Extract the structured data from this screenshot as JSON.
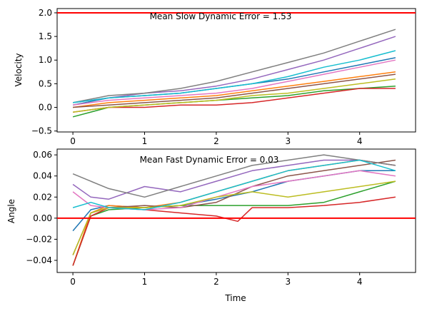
{
  "chart_data": [
    {
      "type": "line",
      "title": "",
      "annotation": "Mean Slow Dynamic Error = 1.53",
      "xlabel": "",
      "ylabel": "Velocity",
      "xlim": [
        -0.22,
        4.78
      ],
      "ylim": [
        -0.52,
        2.09
      ],
      "xticks": [
        0,
        1,
        2,
        3,
        4
      ],
      "xtick_labels": [
        "0",
        "1",
        "2",
        "3",
        "4"
      ],
      "yticks": [
        -0.5,
        0.0,
        0.5,
        1.0,
        1.5,
        2.0
      ],
      "ytick_labels": [
        "−0.5",
        "0.0",
        "0.5",
        "1.0",
        "1.5",
        "2.0"
      ],
      "grid": false,
      "reference_line": {
        "y": 2.0,
        "color": "#ff0000"
      },
      "series": [
        {
          "color": "#1f77b4",
          "x": [
            0,
            0.5,
            1,
            1.5,
            2,
            2.5,
            3,
            3.5,
            4,
            4.5
          ],
          "values": [
            0.05,
            0.2,
            0.25,
            0.3,
            0.4,
            0.5,
            0.6,
            0.75,
            0.9,
            1.05
          ]
        },
        {
          "color": "#ff7f0e",
          "x": [
            0,
            0.5,
            1,
            1.5,
            2,
            2.5,
            3,
            3.5,
            4,
            4.5
          ],
          "values": [
            0.0,
            0.1,
            0.15,
            0.2,
            0.25,
            0.35,
            0.45,
            0.55,
            0.65,
            0.75
          ]
        },
        {
          "color": "#2ca02c",
          "x": [
            0,
            0.5,
            1,
            1.5,
            2,
            2.5,
            3,
            3.5,
            4,
            4.5
          ],
          "values": [
            -0.2,
            0.0,
            0.05,
            0.1,
            0.15,
            0.2,
            0.25,
            0.35,
            0.4,
            0.45
          ]
        },
        {
          "color": "#d62728",
          "x": [
            0,
            0.5,
            1,
            1.5,
            2,
            2.5,
            3,
            3.5,
            4,
            4.5
          ],
          "values": [
            -0.1,
            0.0,
            0.0,
            0.05,
            0.05,
            0.1,
            0.2,
            0.3,
            0.4,
            0.4
          ]
        },
        {
          "color": "#9467bd",
          "x": [
            0,
            0.5,
            1,
            1.5,
            2,
            2.5,
            3,
            3.5,
            4,
            4.5
          ],
          "values": [
            0.1,
            0.2,
            0.3,
            0.35,
            0.45,
            0.6,
            0.8,
            1.0,
            1.25,
            1.5
          ]
        },
        {
          "color": "#8c564b",
          "x": [
            0,
            0.5,
            1,
            1.5,
            2,
            2.5,
            3,
            3.5,
            4,
            4.5
          ],
          "values": [
            0.0,
            0.05,
            0.1,
            0.15,
            0.2,
            0.3,
            0.4,
            0.5,
            0.6,
            0.7
          ]
        },
        {
          "color": "#e377c2",
          "x": [
            0,
            0.5,
            1,
            1.5,
            2,
            2.5,
            3,
            3.5,
            4,
            4.5
          ],
          "values": [
            0.05,
            0.15,
            0.2,
            0.25,
            0.3,
            0.4,
            0.55,
            0.7,
            0.85,
            1.0
          ]
        },
        {
          "color": "#7f7f7f",
          "x": [
            0,
            0.5,
            1,
            1.5,
            2,
            2.5,
            3,
            3.5,
            4,
            4.5
          ],
          "values": [
            0.1,
            0.25,
            0.3,
            0.4,
            0.55,
            0.75,
            0.95,
            1.15,
            1.4,
            1.65
          ]
        },
        {
          "color": "#bcbd22",
          "x": [
            0,
            0.5,
            1,
            1.5,
            2,
            2.5,
            3,
            3.5,
            4,
            4.5
          ],
          "values": [
            -0.1,
            0.0,
            0.05,
            0.1,
            0.15,
            0.25,
            0.3,
            0.4,
            0.5,
            0.6
          ]
        },
        {
          "color": "#17becf",
          "x": [
            0,
            0.5,
            1,
            1.5,
            2,
            2.5,
            3,
            3.5,
            4,
            4.5
          ],
          "values": [
            0.1,
            0.2,
            0.25,
            0.3,
            0.4,
            0.5,
            0.65,
            0.85,
            1.0,
            1.2
          ]
        }
      ]
    },
    {
      "type": "line",
      "title": "",
      "annotation": "Mean Fast Dynamic Error = 0.03",
      "xlabel": "Time",
      "ylabel": "Angle",
      "xlim": [
        -0.22,
        4.78
      ],
      "ylim": [
        -0.0515,
        0.0655
      ],
      "xticks": [
        0,
        1,
        2,
        3,
        4
      ],
      "xtick_labels": [
        "0",
        "1",
        "2",
        "3",
        "4"
      ],
      "yticks": [
        -0.04,
        -0.02,
        0.0,
        0.02,
        0.04,
        0.06
      ],
      "ytick_labels": [
        "−0.04",
        "−0.02",
        "0.00",
        "0.02",
        "0.04",
        "0.06"
      ],
      "grid": false,
      "reference_line": {
        "y": 0.0,
        "color": "#ff0000"
      },
      "series": [
        {
          "color": "#1f77b4",
          "x": [
            0,
            0.25,
            0.5,
            1,
            1.5,
            2,
            2.5,
            3,
            3.5,
            4,
            4.5
          ],
          "values": [
            -0.012,
            0.008,
            0.012,
            0.01,
            0.012,
            0.018,
            0.025,
            0.035,
            0.04,
            0.045,
            0.045
          ]
        },
        {
          "color": "#ff7f0e",
          "x": [
            0,
            0.25,
            0.5,
            1,
            1.5,
            2,
            2.5,
            3,
            3.5,
            4,
            4.5
          ],
          "values": [
            -0.045,
            0.005,
            0.012,
            0.01,
            0.015,
            0.025,
            0.035,
            0.045,
            0.05,
            0.055,
            0.05
          ]
        },
        {
          "color": "#2ca02c",
          "x": [
            0,
            0.25,
            0.5,
            1,
            1.5,
            2,
            2.5,
            3,
            3.5,
            4,
            4.5
          ],
          "values": [
            -0.045,
            0.002,
            0.008,
            0.01,
            0.012,
            0.012,
            0.012,
            0.012,
            0.015,
            0.025,
            0.035
          ]
        },
        {
          "color": "#d62728",
          "x": [
            0,
            0.25,
            0.5,
            1,
            1.5,
            2,
            2.3,
            2.5,
            3,
            3.5,
            4,
            4.5
          ],
          "values": [
            -0.045,
            0.002,
            0.01,
            0.008,
            0.005,
            0.002,
            -0.003,
            0.01,
            0.01,
            0.012,
            0.015,
            0.02
          ]
        },
        {
          "color": "#9467bd",
          "x": [
            0,
            0.25,
            0.5,
            1,
            1.5,
            2,
            2.5,
            3,
            3.5,
            4,
            4.5
          ],
          "values": [
            0.032,
            0.02,
            0.018,
            0.03,
            0.025,
            0.035,
            0.045,
            0.05,
            0.055,
            0.055,
            0.05
          ]
        },
        {
          "color": "#8c564b",
          "x": [
            0,
            0.25,
            0.5,
            1,
            1.5,
            2,
            2.5,
            3,
            3.5,
            4,
            4.5
          ],
          "values": [
            -0.035,
            0.005,
            0.01,
            0.012,
            0.01,
            0.015,
            0.03,
            0.04,
            0.045,
            0.05,
            0.055
          ]
        },
        {
          "color": "#e377c2",
          "x": [
            0,
            0.25,
            0.5,
            1,
            1.5,
            2,
            2.5,
            3,
            3.5,
            4,
            4.5
          ],
          "values": [
            0.025,
            0.012,
            0.01,
            0.008,
            0.01,
            0.02,
            0.03,
            0.035,
            0.04,
            0.045,
            0.04
          ]
        },
        {
          "color": "#7f7f7f",
          "x": [
            0,
            0.25,
            0.5,
            1,
            1.5,
            2,
            2.5,
            3,
            3.5,
            4,
            4.5
          ],
          "values": [
            0.042,
            0.035,
            0.028,
            0.02,
            0.03,
            0.04,
            0.05,
            0.055,
            0.06,
            0.055,
            0.05
          ]
        },
        {
          "color": "#bcbd22",
          "x": [
            0,
            0.25,
            0.5,
            1,
            1.5,
            2,
            2.5,
            3,
            3.5,
            4,
            4.5
          ],
          "values": [
            -0.035,
            0.005,
            0.01,
            0.01,
            0.012,
            0.02,
            0.025,
            0.02,
            0.025,
            0.03,
            0.035
          ]
        },
        {
          "color": "#17becf",
          "x": [
            0,
            0.25,
            0.5,
            1,
            1.5,
            2,
            2.5,
            3,
            3.5,
            4,
            4.5
          ],
          "values": [
            0.01,
            0.015,
            0.01,
            0.008,
            0.015,
            0.025,
            0.035,
            0.045,
            0.05,
            0.055,
            0.045
          ]
        }
      ]
    }
  ]
}
